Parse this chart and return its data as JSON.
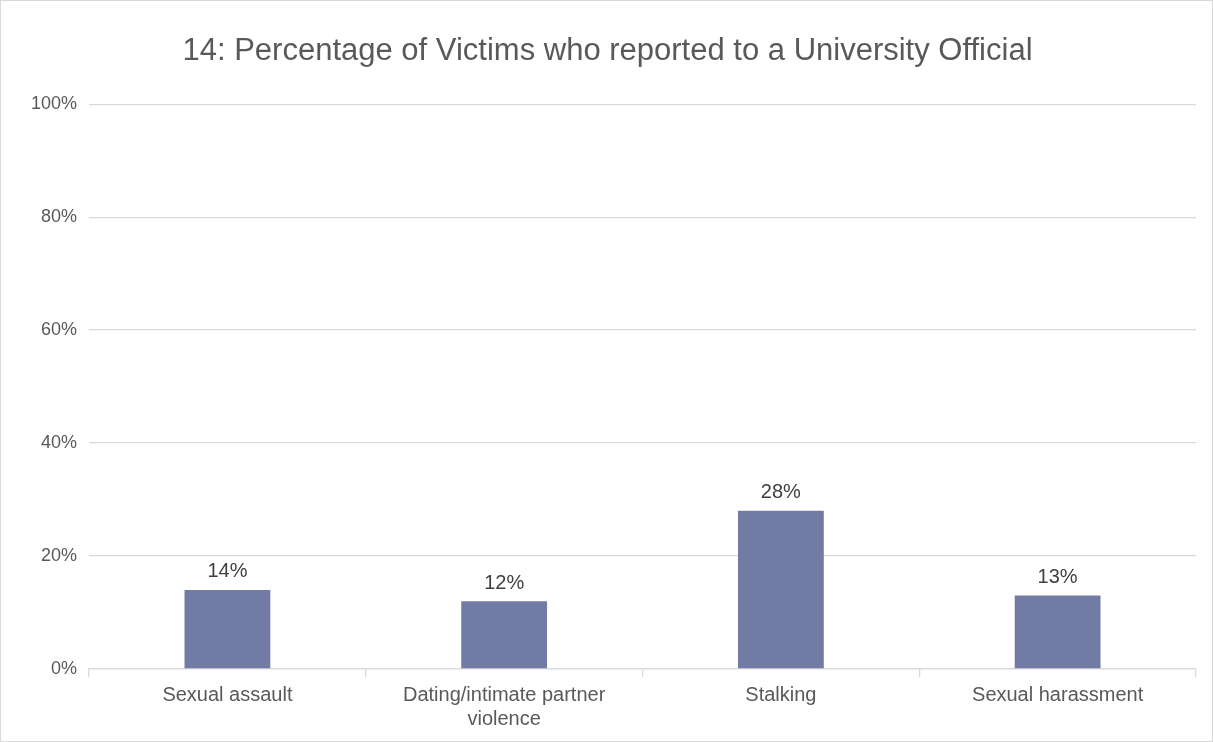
{
  "chart_data": {
    "type": "bar",
    "title": "14: Percentage of Victims who reported to a University Official",
    "categories": [
      "Sexual assault",
      "Dating/intimate partner violence",
      "Stalking",
      "Sexual harassment"
    ],
    "values": [
      14,
      12,
      28,
      13
    ],
    "color": "#717ba3",
    "value_labels": [
      "14%",
      "12%",
      "28%",
      "13%"
    ],
    "ylim": [
      0,
      100
    ],
    "yticks": [
      {
        "value": 0,
        "label": "0%"
      },
      {
        "value": 20,
        "label": "20%"
      },
      {
        "value": 40,
        "label": "40%"
      },
      {
        "value": 60,
        "label": "60%"
      },
      {
        "value": 80,
        "label": "80%"
      },
      {
        "value": 100,
        "label": "100%"
      }
    ],
    "grid": "y",
    "legend": false
  }
}
